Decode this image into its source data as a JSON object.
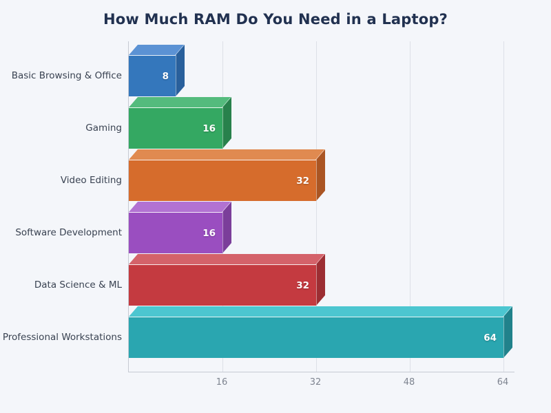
{
  "chart_data": {
    "type": "bar",
    "orientation": "horizontal",
    "style": "3d",
    "title": "How Much RAM Do You Need in a Laptop?",
    "categories": [
      "Basic Browsing & Office",
      "Gaming",
      "Video Editing",
      "Software Development",
      "Data Science & ML",
      "Professional Workstations"
    ],
    "values": [
      8,
      16,
      32,
      16,
      32,
      64
    ],
    "value_labels": [
      "8",
      "16",
      "32",
      "16",
      "32",
      "64"
    ],
    "x_ticks": [
      16,
      32,
      48,
      64
    ],
    "xlim": [
      0,
      66
    ],
    "xlabel": "",
    "ylabel": "",
    "grid": true,
    "legend": false,
    "bar_front_colors": [
      "#3477bc",
      "#34a862",
      "#d66c2c",
      "#9a4ec0",
      "#c43a40",
      "#2aa6b0"
    ],
    "bar_top_colors": [
      "#5b92d4",
      "#54bb7d",
      "#e08a50",
      "#b272d2",
      "#d4626a",
      "#4cc6d0"
    ],
    "bar_side_colors": [
      "#29609c",
      "#28814c",
      "#aa5523",
      "#7b3e9a",
      "#9c2e33",
      "#21828b"
    ]
  },
  "colors": {
    "background": "#f4f6fa",
    "title": "#213150",
    "axis_line": "#c6cad3",
    "gridline": "#dde0e7",
    "tick_label": "#7e8490",
    "category_label": "#394251",
    "value_label": "#ffffff"
  }
}
